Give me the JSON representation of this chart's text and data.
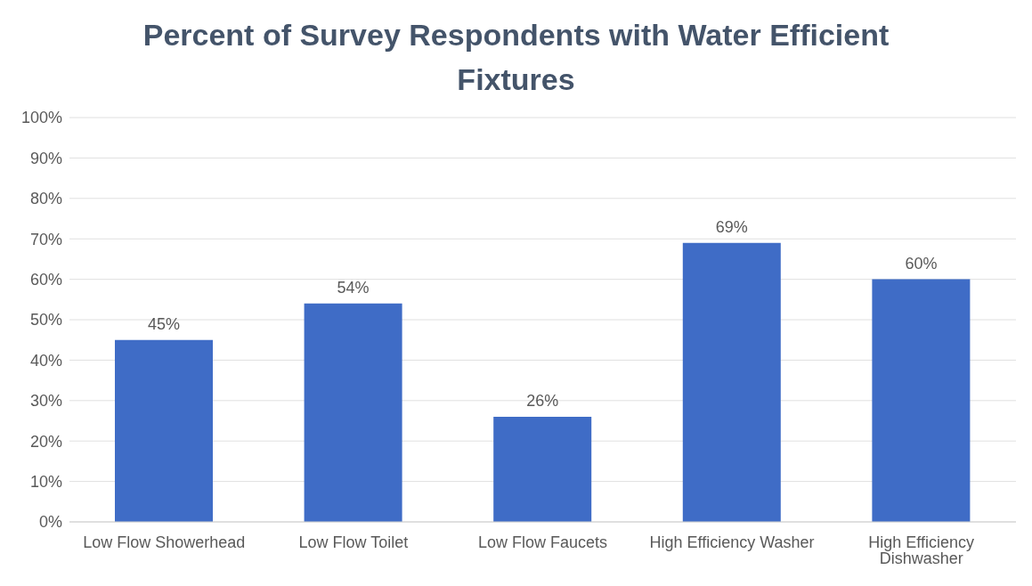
{
  "chart_data": {
    "type": "bar",
    "title": "Percent of Survey Respondents with Water Efficient Fixtures",
    "categories": [
      "Low Flow Showerhead",
      "Low Flow Toilet",
      "Low Flow Faucets",
      "High Efficiency Washer",
      "High Efficiency Dishwasher"
    ],
    "values": [
      45,
      54,
      26,
      69,
      60
    ],
    "color": "#3f6cc6",
    "value_labels": [
      "45%",
      "54%",
      "26%",
      "69%",
      "60%"
    ],
    "ylim": [
      0,
      100
    ],
    "yticks": [
      {
        "value": 0,
        "label": "0%"
      },
      {
        "value": 10,
        "label": "10%"
      },
      {
        "value": 20,
        "label": "20%"
      },
      {
        "value": 30,
        "label": "30%"
      },
      {
        "value": 40,
        "label": "40%"
      },
      {
        "value": 50,
        "label": "50%"
      },
      {
        "value": 60,
        "label": "60%"
      },
      {
        "value": 70,
        "label": "70%"
      },
      {
        "value": 80,
        "label": "80%"
      },
      {
        "value": 90,
        "label": "90%"
      },
      {
        "value": 100,
        "label": "100%"
      }
    ],
    "grid": "y",
    "legend": false
  }
}
